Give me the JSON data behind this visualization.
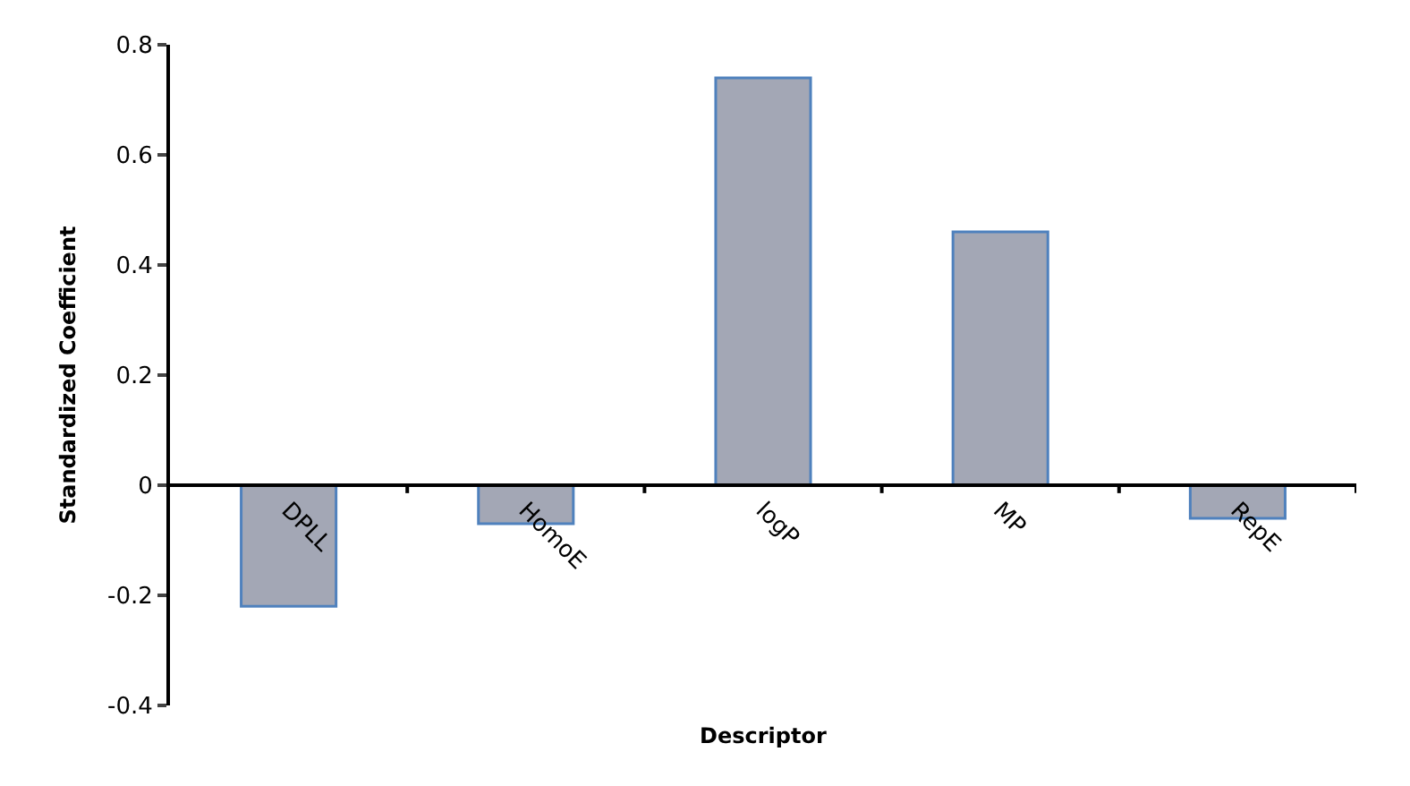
{
  "chart_data": {
    "type": "bar",
    "xlabel": "Descriptor",
    "ylabel": "Standardized Coefficient",
    "categories": [
      "DPLL",
      "HomoE",
      "logP",
      "MP",
      "RepE"
    ],
    "values": [
      -0.22,
      -0.07,
      0.74,
      0.46,
      -0.06
    ],
    "color": "#a3a7b5",
    "ylim": [
      -0.4,
      0.8
    ],
    "yticks": [
      -0.4,
      -0.2,
      0,
      0.2,
      0.4,
      0.6,
      0.8
    ]
  }
}
